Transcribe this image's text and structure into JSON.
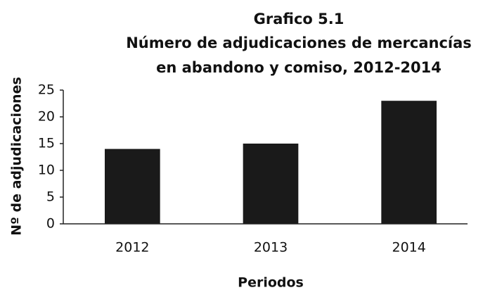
{
  "chart_data": {
    "type": "bar",
    "title": "Grafico 5.1",
    "subtitle": [
      "Número de adjudicaciones de mercancías",
      "en abandono y comiso, 2012-2014"
    ],
    "categories": [
      "2012",
      "2013",
      "2014"
    ],
    "values": [
      14,
      15,
      23
    ],
    "color": "#1a1a1a",
    "xlabel": "Periodos",
    "ylabel": "Nº de adjudicaciones",
    "ylim": [
      0,
      25
    ],
    "yticks": [
      0,
      5,
      10,
      15,
      20,
      25
    ],
    "grid": false
  }
}
